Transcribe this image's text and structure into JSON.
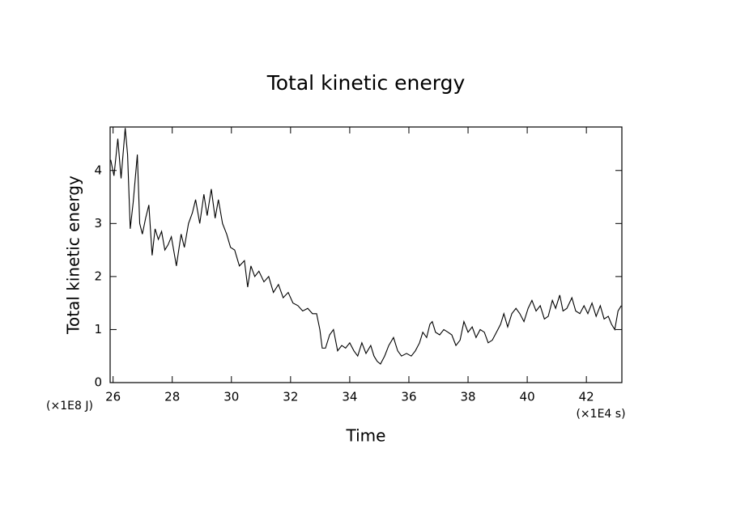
{
  "chart_data": {
    "type": "line",
    "title": "Total kinetic energy",
    "x_label": "Time",
    "y_label": "Total kinetic energy",
    "x_unit": "(×1E4 s)",
    "y_unit": "(×1E8 J)",
    "color": "#000000",
    "xlim": [
      25.9,
      43.2
    ],
    "ylim": [
      0,
      4.82
    ],
    "xticks": [
      26,
      28,
      30,
      32,
      34,
      36,
      38,
      40,
      42
    ],
    "yticks": [
      0,
      1,
      2,
      3,
      4
    ],
    "x": [
      25.92,
      26.03,
      26.16,
      26.27,
      26.41,
      26.49,
      26.58,
      26.68,
      26.82,
      26.9,
      26.99,
      27.1,
      27.21,
      27.32,
      27.42,
      27.53,
      27.64,
      27.75,
      27.86,
      27.97,
      28.14,
      28.3,
      28.41,
      28.55,
      28.68,
      28.79,
      28.93,
      29.07,
      29.18,
      29.32,
      29.45,
      29.56,
      29.7,
      29.84,
      29.97,
      30.11,
      30.27,
      30.44,
      30.55,
      30.66,
      30.79,
      30.93,
      31.1,
      31.26,
      31.42,
      31.59,
      31.75,
      31.92,
      32.08,
      32.25,
      32.41,
      32.58,
      32.74,
      32.88,
      32.99,
      33.07,
      33.18,
      33.32,
      33.45,
      33.59,
      33.73,
      33.86,
      34.0,
      34.14,
      34.27,
      34.41,
      34.55,
      34.71,
      34.82,
      34.93,
      35.04,
      35.18,
      35.32,
      35.48,
      35.62,
      35.75,
      35.92,
      36.08,
      36.22,
      36.36,
      36.47,
      36.6,
      36.71,
      36.79,
      36.9,
      37.04,
      37.18,
      37.32,
      37.45,
      37.59,
      37.73,
      37.86,
      38.0,
      38.14,
      38.27,
      38.41,
      38.55,
      38.68,
      38.82,
      38.96,
      39.1,
      39.21,
      39.34,
      39.48,
      39.62,
      39.75,
      39.89,
      40.03,
      40.16,
      40.3,
      40.44,
      40.58,
      40.71,
      40.85,
      40.96,
      41.1,
      41.21,
      41.34,
      41.51,
      41.64,
      41.78,
      41.92,
      42.05,
      42.19,
      42.33,
      42.47,
      42.6,
      42.74,
      42.85,
      42.96,
      43.07,
      43.18
    ],
    "values": [
      4.2,
      3.9,
      4.6,
      3.85,
      4.8,
      4.3,
      2.9,
      3.4,
      4.3,
      3.0,
      2.8,
      3.1,
      3.35,
      2.4,
      2.9,
      2.7,
      2.85,
      2.5,
      2.6,
      2.75,
      2.2,
      2.8,
      2.55,
      3.0,
      3.2,
      3.45,
      3.0,
      3.55,
      3.15,
      3.65,
      3.1,
      3.45,
      3.0,
      2.8,
      2.55,
      2.5,
      2.2,
      2.3,
      1.8,
      2.2,
      2.0,
      2.1,
      1.9,
      2.0,
      1.7,
      1.85,
      1.6,
      1.7,
      1.5,
      1.45,
      1.35,
      1.4,
      1.3,
      1.3,
      1.0,
      0.65,
      0.65,
      0.9,
      1.0,
      0.6,
      0.7,
      0.65,
      0.75,
      0.6,
      0.5,
      0.75,
      0.55,
      0.7,
      0.5,
      0.4,
      0.35,
      0.5,
      0.7,
      0.85,
      0.6,
      0.5,
      0.55,
      0.5,
      0.6,
      0.75,
      0.95,
      0.85,
      1.1,
      1.15,
      0.95,
      0.9,
      1.0,
      0.95,
      0.9,
      0.7,
      0.8,
      1.15,
      0.95,
      1.05,
      0.85,
      1.0,
      0.95,
      0.75,
      0.8,
      0.95,
      1.1,
      1.3,
      1.05,
      1.3,
      1.4,
      1.3,
      1.15,
      1.4,
      1.55,
      1.35,
      1.45,
      1.2,
      1.25,
      1.55,
      1.4,
      1.65,
      1.35,
      1.4,
      1.6,
      1.35,
      1.3,
      1.45,
      1.3,
      1.5,
      1.25,
      1.45,
      1.2,
      1.25,
      1.1,
      1.0,
      1.35,
      1.45
    ]
  }
}
